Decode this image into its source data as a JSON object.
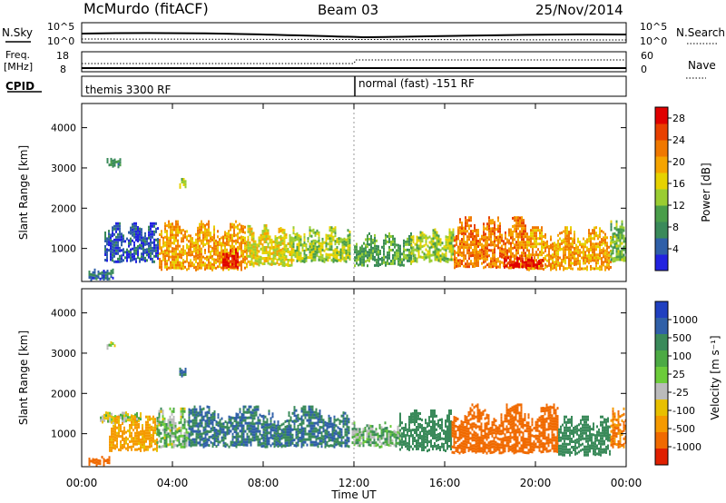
{
  "header": {
    "title": "McMurdo (fitACF)",
    "beam": "Beam 03",
    "date": "25/Nov/2014"
  },
  "panels": {
    "nsky_label": "N.Sky",
    "nsearch_label": "N.Search",
    "freq_label_line1": "Freq.",
    "freq_label_line2": "[MHz]",
    "nave_label": "Nave",
    "cpid_label": "CPID",
    "nsky_ticks": [
      "10^5",
      "10^0"
    ],
    "nsearch_ticks": [
      "10^5",
      "10^0"
    ],
    "freq_ticks": [
      "18",
      "8"
    ],
    "nave_ticks": [
      "60",
      "0"
    ],
    "cpid_modes": [
      "themis 3300 RF",
      "normal (fast) -151 RF"
    ]
  },
  "chart_data": [
    {
      "type": "heatmap",
      "name": "power",
      "xlabel": "Time UT",
      "ylabel": "Slant Range [km]",
      "xticks": [
        "00:00",
        "04:00",
        "08:00",
        "12:00",
        "16:00",
        "20:00",
        "00:00"
      ],
      "xlim_hours": [
        0,
        24
      ],
      "yticks": [
        "1000",
        "2000",
        "3000",
        "4000"
      ],
      "ylim": [
        180,
        4600
      ],
      "colorbar": {
        "label": "Power [dB]",
        "ticks": [
          "4",
          "8",
          "12",
          "16",
          "20",
          "24",
          "28"
        ],
        "colors": [
          "#2222e0",
          "#2f5fa8",
          "#3a8a5a",
          "#4a9e4a",
          "#9acd32",
          "#e6d200",
          "#f5a400",
          "#f07800",
          "#e84000",
          "#e00000"
        ]
      },
      "clusters": [
        {
          "t_start": 0.3,
          "t_end": 1.4,
          "r_low": 250,
          "r_high": 500,
          "value": 6
        },
        {
          "t_start": 1.0,
          "t_end": 3.4,
          "r_low": 700,
          "r_high": 1650,
          "value": 4
        },
        {
          "t_start": 3.4,
          "t_end": 7.3,
          "r_low": 500,
          "r_high": 1700,
          "value": 20
        },
        {
          "t_start": 6.2,
          "t_end": 6.9,
          "r_low": 550,
          "r_high": 1000,
          "value": 28
        },
        {
          "t_start": 7.3,
          "t_end": 9.3,
          "r_low": 600,
          "r_high": 1600,
          "value": 16
        },
        {
          "t_start": 9.3,
          "t_end": 11.8,
          "r_low": 700,
          "r_high": 1550,
          "value": 14
        },
        {
          "t_start": 12.0,
          "t_end": 14.5,
          "r_low": 600,
          "r_high": 1400,
          "value": 10
        },
        {
          "t_start": 14.5,
          "t_end": 16.4,
          "r_low": 700,
          "r_high": 1500,
          "value": 14
        },
        {
          "t_start": 16.4,
          "t_end": 19.6,
          "r_low": 550,
          "r_high": 1800,
          "value": 22
        },
        {
          "t_start": 19.6,
          "t_end": 23.3,
          "r_low": 500,
          "r_high": 1550,
          "value": 20
        },
        {
          "t_start": 18.6,
          "t_end": 20.3,
          "r_low": 550,
          "r_high": 800,
          "value": 28
        },
        {
          "t_start": 23.3,
          "t_end": 24.0,
          "r_low": 700,
          "r_high": 1700,
          "value": 12
        },
        {
          "t_start": 1.1,
          "t_end": 1.7,
          "r_low": 3050,
          "r_high": 3250,
          "value": 8
        },
        {
          "t_start": 4.3,
          "t_end": 4.6,
          "r_low": 2550,
          "r_high": 2750,
          "value": 14
        }
      ]
    },
    {
      "type": "heatmap",
      "name": "velocity",
      "xlabel": "Time UT",
      "ylabel": "Slant Range [km]",
      "xticks": [
        "00:00",
        "04:00",
        "08:00",
        "12:00",
        "16:00",
        "20:00",
        "00:00"
      ],
      "xlim_hours": [
        0,
        24
      ],
      "yticks": [
        "1000",
        "2000",
        "3000",
        "4000"
      ],
      "ylim": [
        180,
        4600
      ],
      "colorbar": {
        "label": "Velocity [m s⁻¹]",
        "ticks": [
          "1000",
          "500",
          "100",
          "25",
          "-25",
          "-100",
          "-500",
          "-1000"
        ],
        "colors": [
          "#2040c0",
          "#3060a8",
          "#3a8a5a",
          "#4caa44",
          "#6ccc3a",
          "#bbbbbb",
          "#e8c000",
          "#f59a00",
          "#f06a00",
          "#e02000"
        ]
      },
      "clusters": [
        {
          "t_start": 0.3,
          "t_end": 1.2,
          "r_low": 250,
          "r_high": 450,
          "value": -500
        },
        {
          "t_start": 0.8,
          "t_end": 2.6,
          "r_low": 1300,
          "r_high": 1550,
          "value": 0
        },
        {
          "t_start": 1.2,
          "t_end": 3.3,
          "r_low": 600,
          "r_high": 1450,
          "value": -150
        },
        {
          "t_start": 3.3,
          "t_end": 4.7,
          "r_low": 700,
          "r_high": 1650,
          "value": 50
        },
        {
          "t_start": 4.7,
          "t_end": 11.8,
          "r_low": 700,
          "r_high": 1700,
          "value": 300
        },
        {
          "t_start": 11.9,
          "t_end": 14.0,
          "r_low": 700,
          "r_high": 1300,
          "value": 60
        },
        {
          "t_start": 14.0,
          "t_end": 16.3,
          "r_low": 600,
          "r_high": 1600,
          "value": 200
        },
        {
          "t_start": 16.3,
          "t_end": 21.0,
          "r_low": 550,
          "r_high": 1750,
          "value": -450
        },
        {
          "t_start": 21.0,
          "t_end": 23.3,
          "r_low": 500,
          "r_high": 1450,
          "value": 200
        },
        {
          "t_start": 23.3,
          "t_end": 24.0,
          "r_low": 700,
          "r_high": 1650,
          "value": -300
        },
        {
          "t_start": 1.1,
          "t_end": 1.5,
          "r_low": 3150,
          "r_high": 3300,
          "value": 0
        },
        {
          "t_start": 4.3,
          "t_end": 4.6,
          "r_low": 2450,
          "r_high": 2650,
          "value": 300
        }
      ]
    }
  ]
}
